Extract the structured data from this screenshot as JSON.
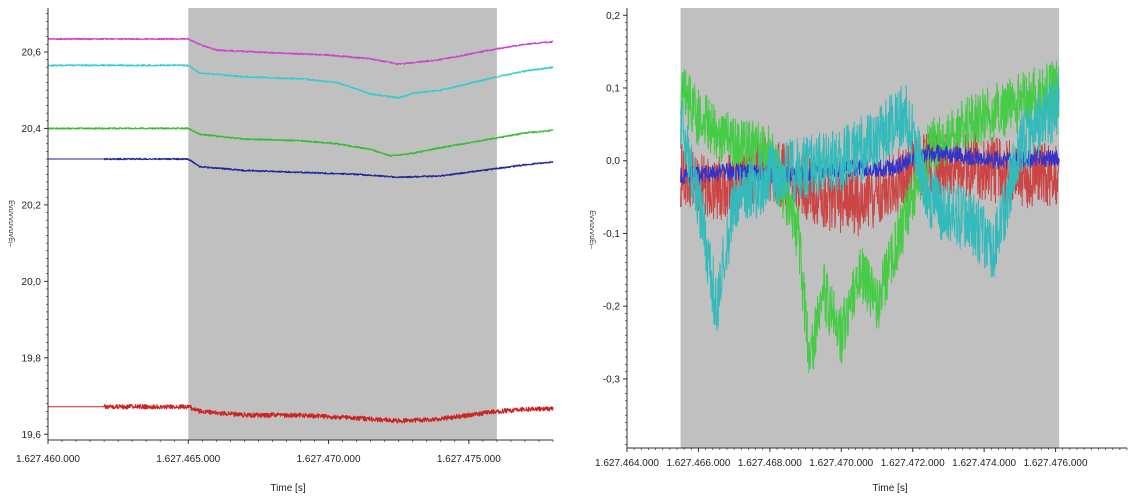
{
  "chart_data": [
    {
      "type": "line",
      "xlabel": "Time [s]",
      "ylabel_glyphs": "⊣ᴟᴧᴨᴧᴨᴧᴧᴨᴧᴟ",
      "xlim": [
        1627460000,
        1627478000
      ],
      "ylim": [
        19.585,
        20.715
      ],
      "grid": false,
      "highlight_region": [
        1627465000,
        1627476000
      ],
      "highlight_color": "#c0c0c0",
      "x_ticks": [
        {
          "value": 1627460000,
          "label": "1.627.460.000"
        },
        {
          "value": 1627465000,
          "label": "1.627.465.000"
        },
        {
          "value": 1627470000,
          "label": "1.627.470.000"
        },
        {
          "value": 1627475000,
          "label": "1.627.475.000"
        }
      ],
      "y_ticks": [
        {
          "value": 19.6,
          "label": "19,6"
        },
        {
          "value": 19.8,
          "label": "19,8"
        },
        {
          "value": 20.0,
          "label": "20,0"
        },
        {
          "value": 20.2,
          "label": "20,2"
        },
        {
          "value": 20.4,
          "label": "20,4"
        },
        {
          "value": 20.6,
          "label": "20,6"
        }
      ],
      "series": [
        {
          "color": "#cc44cc",
          "noise": 0.002,
          "x": [
            1627460000,
            1627465000,
            1627465400,
            1627466000,
            1627468000,
            1627470000,
            1627471500,
            1627472500,
            1627474000,
            1627476000,
            1627477000,
            1627478000
          ],
          "y": [
            20.634,
            20.634,
            20.62,
            20.605,
            20.598,
            20.592,
            20.582,
            20.568,
            20.58,
            20.608,
            20.62,
            20.627
          ]
        },
        {
          "color": "#33cccc",
          "noise": 0.002,
          "x": [
            1627460000,
            1627465000,
            1627465400,
            1627467000,
            1627469000,
            1627470300,
            1627471500,
            1627472500,
            1627473000,
            1627474000,
            1627476000,
            1627477000,
            1627478000
          ],
          "y": [
            20.565,
            20.565,
            20.545,
            20.535,
            20.53,
            20.52,
            20.49,
            20.48,
            20.492,
            20.5,
            20.535,
            20.55,
            20.56
          ]
        },
        {
          "color": "#33bb33",
          "noise": 0.002,
          "x": [
            1627460000,
            1627465000,
            1627465400,
            1627467000,
            1627469000,
            1627470300,
            1627471500,
            1627472200,
            1627473000,
            1627474000,
            1627476000,
            1627477000,
            1627478000
          ],
          "y": [
            20.4,
            20.4,
            20.385,
            20.372,
            20.368,
            20.36,
            20.345,
            20.328,
            20.335,
            20.35,
            20.375,
            20.388,
            20.395
          ]
        },
        {
          "color": "#222299",
          "noise": 0.002,
          "x": [
            1627460000,
            1627465000,
            1627465400,
            1627467000,
            1627469000,
            1627471000,
            1627472500,
            1627474000,
            1627476000,
            1627477000,
            1627478000
          ],
          "y": [
            20.32,
            20.32,
            20.3,
            20.29,
            20.285,
            20.28,
            20.272,
            20.276,
            20.295,
            20.305,
            20.312
          ],
          "start_flat_to": 1627462000
        },
        {
          "color": "#cc2222",
          "noise": 0.006,
          "noise_start": 1627462000,
          "x": [
            1627460000,
            1627462000,
            1627465000,
            1627465400,
            1627467000,
            1627469000,
            1627471000,
            1627472500,
            1627474000,
            1627476000,
            1627477000,
            1627478000
          ],
          "y": [
            19.672,
            19.672,
            19.672,
            19.66,
            19.65,
            19.65,
            19.642,
            19.635,
            19.64,
            19.66,
            19.665,
            19.667
          ]
        }
      ]
    },
    {
      "type": "line",
      "xlabel": "Time [s]",
      "ylabel_glyphs": "⊣ᴟᴨᴧᴧᴨᴧᴧᴟ",
      "xlim": [
        1627464000,
        1627478000
      ],
      "ylim": [
        -0.395,
        0.21
      ],
      "grid": false,
      "highlight_region": [
        1627465500,
        1627476100
      ],
      "highlight_color": "#c0c0c0",
      "x_ticks": [
        {
          "value": 1627464000,
          "label": "1.627.464.000"
        },
        {
          "value": 1627466000,
          "label": "1.627.466.000"
        },
        {
          "value": 1627468000,
          "label": "1.627.468.000"
        },
        {
          "value": 1627470000,
          "label": "1.627.470.000"
        },
        {
          "value": 1627472000,
          "label": "1.627.472.000"
        },
        {
          "value": 1627474000,
          "label": "1.627.474.000"
        },
        {
          "value": 1627476000,
          "label": "1.627.476.000"
        }
      ],
      "y_ticks": [
        {
          "value": -0.3,
          "label": "-0,3"
        },
        {
          "value": -0.2,
          "label": "-0,2"
        },
        {
          "value": -0.1,
          "label": "-0,1"
        },
        {
          "value": 0.0,
          "label": "0,0"
        },
        {
          "value": 0.1,
          "label": "0,1"
        },
        {
          "value": 0.2,
          "label": "0,2"
        }
      ],
      "series": [
        {
          "color": "#cc4444",
          "noise": 0.045,
          "x": [
            1627465500,
            1627466500,
            1627468000,
            1627469500,
            1627470500,
            1627471800,
            1627472500,
            1627474000,
            1627475000,
            1627476100
          ],
          "y": [
            -0.02,
            -0.04,
            -0.01,
            -0.05,
            -0.06,
            -0.02,
            0.0,
            -0.01,
            -0.02,
            -0.02
          ]
        },
        {
          "color": "#44cc44",
          "noise": 0.04,
          "x": [
            1627465500,
            1627466000,
            1627467000,
            1627468000,
            1627468800,
            1627469100,
            1627469500,
            1627470000,
            1627470500,
            1627471000,
            1627471500,
            1627472000,
            1627472500,
            1627473500,
            1627474500,
            1627475500,
            1627476100
          ],
          "y": [
            0.1,
            0.06,
            0.02,
            0.01,
            -0.1,
            -0.28,
            -0.18,
            -0.24,
            -0.15,
            -0.2,
            -0.12,
            -0.05,
            0.02,
            0.05,
            0.07,
            0.09,
            0.1
          ]
        },
        {
          "color": "#3333cc",
          "noise": 0.012,
          "x": [
            1627465500,
            1627467000,
            1627468500,
            1627470000,
            1627471500,
            1627472200,
            1627473000,
            1627474500,
            1627476100
          ],
          "y": [
            -0.02,
            -0.015,
            -0.02,
            -0.01,
            -0.01,
            0.01,
            0.01,
            0.0,
            0.005
          ]
        },
        {
          "color": "#33bbbb",
          "noise": 0.045,
          "x": [
            1627465500,
            1627466000,
            1627466500,
            1627467000,
            1627468000,
            1627469000,
            1627470000,
            1627471000,
            1627471800,
            1627472500,
            1627473500,
            1627474300,
            1627475000,
            1627476100
          ],
          "y": [
            0.05,
            -0.05,
            -0.2,
            -0.06,
            -0.02,
            -0.01,
            0.0,
            0.03,
            0.07,
            -0.06,
            -0.08,
            -0.12,
            0.02,
            0.08
          ]
        }
      ]
    }
  ]
}
